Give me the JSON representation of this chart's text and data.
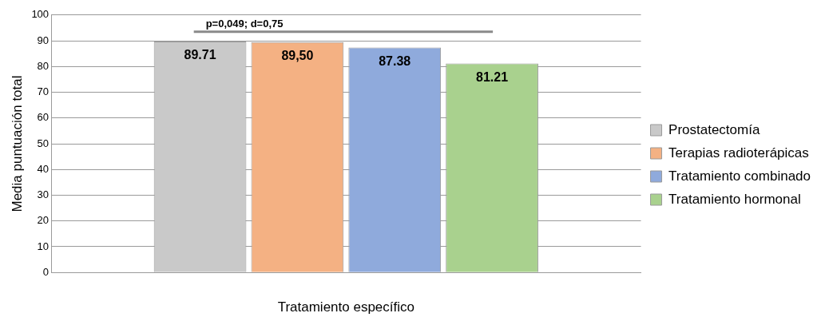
{
  "chart_data": {
    "type": "bar",
    "xlabel": "Tratamiento específico",
    "ylabel": "Media puntuación total",
    "categories": [
      null
    ],
    "series": [
      {
        "name": "Prostatectomía",
        "color": "#c9c9c9",
        "values": [
          89.71
        ],
        "value_labels": [
          "89.71"
        ]
      },
      {
        "name": "Terapias radioterápicas",
        "color": "#f4b183",
        "values": [
          89.5
        ],
        "value_labels": [
          "89,50"
        ]
      },
      {
        "name": "Tratamiento combinado",
        "color": "#8faadc",
        "values": [
          87.38
        ],
        "value_labels": [
          "87.38"
        ]
      },
      {
        "name": "Tratamiento hormonal",
        "color": "#a9d18e",
        "values": [
          81.21
        ],
        "value_labels": [
          "81.21"
        ]
      }
    ],
    "ylim": [
      0,
      100
    ],
    "yticks": [
      0,
      10,
      20,
      30,
      40,
      50,
      60,
      70,
      80,
      90,
      100
    ],
    "grid": "y",
    "legend": "right",
    "annotations": [
      "p=0,049; d=0,75"
    ]
  }
}
